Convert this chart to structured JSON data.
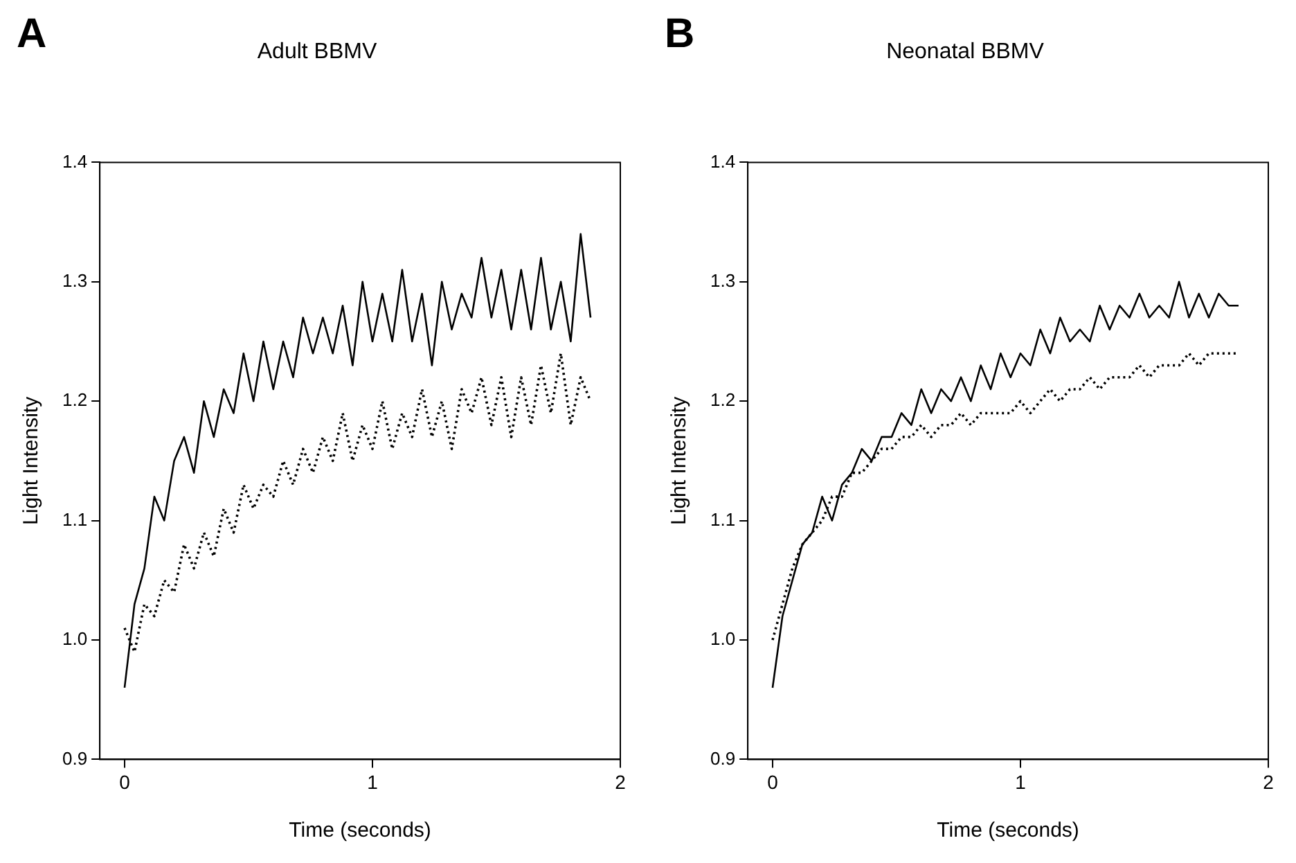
{
  "chart_data": [
    {
      "type": "line",
      "title": "Adult BBMV",
      "xlabel": "Time (seconds)",
      "ylabel": "Light Intensity",
      "annotations": [
        "A"
      ],
      "grid": false,
      "legend": false,
      "marker": "none",
      "xlim": [
        -0.1,
        2
      ],
      "xticks": [
        0,
        1,
        2
      ],
      "ylim": [
        0.9,
        1.4
      ],
      "yticks": [
        {
          "value": 0.9,
          "label": "0.9"
        },
        {
          "value": 1.0,
          "label": "1.0"
        },
        {
          "value": 1.1,
          "label": "1.1"
        },
        {
          "value": 1.2,
          "label": "1.2"
        },
        {
          "value": 1.3,
          "label": "1.3"
        },
        {
          "value": 1.4,
          "label": "1.4"
        }
      ],
      "x": [
        0,
        0.04,
        0.08,
        0.12,
        0.16,
        0.2,
        0.24,
        0.28,
        0.32,
        0.36,
        0.4,
        0.44,
        0.48,
        0.52,
        0.56,
        0.6,
        0.64,
        0.68,
        0.72,
        0.76,
        0.8,
        0.84,
        0.88,
        0.92,
        0.96,
        1.0,
        1.04,
        1.08,
        1.12,
        1.16,
        1.2,
        1.24,
        1.28,
        1.32,
        1.36,
        1.4,
        1.44,
        1.48,
        1.52,
        1.56,
        1.6,
        1.64,
        1.68,
        1.72,
        1.76,
        1.8,
        1.84,
        1.88
      ],
      "series": [
        {
          "color": "#000000",
          "line_style": "solid",
          "values": [
            0.96,
            1.03,
            1.06,
            1.12,
            1.1,
            1.15,
            1.17,
            1.14,
            1.2,
            1.17,
            1.21,
            1.19,
            1.24,
            1.2,
            1.25,
            1.21,
            1.25,
            1.22,
            1.27,
            1.24,
            1.27,
            1.24,
            1.28,
            1.23,
            1.3,
            1.25,
            1.29,
            1.25,
            1.31,
            1.25,
            1.29,
            1.23,
            1.3,
            1.26,
            1.29,
            1.27,
            1.32,
            1.27,
            1.31,
            1.26,
            1.31,
            1.26,
            1.32,
            1.26,
            1.3,
            1.25,
            1.34,
            1.27
          ]
        },
        {
          "color": "#000000",
          "line_style": "dotted",
          "values": [
            1.01,
            0.99,
            1.03,
            1.02,
            1.05,
            1.04,
            1.08,
            1.06,
            1.09,
            1.07,
            1.11,
            1.09,
            1.13,
            1.11,
            1.13,
            1.12,
            1.15,
            1.13,
            1.16,
            1.14,
            1.17,
            1.15,
            1.19,
            1.15,
            1.18,
            1.16,
            1.2,
            1.16,
            1.19,
            1.17,
            1.21,
            1.17,
            1.2,
            1.16,
            1.21,
            1.19,
            1.22,
            1.18,
            1.22,
            1.17,
            1.22,
            1.18,
            1.23,
            1.19,
            1.24,
            1.18,
            1.22,
            1.2
          ]
        }
      ]
    },
    {
      "type": "line",
      "title": "Neonatal BBMV",
      "xlabel": "Time (seconds)",
      "ylabel": "Light Intensity",
      "annotations": [
        "B"
      ],
      "grid": false,
      "legend": false,
      "marker": "none",
      "xlim": [
        -0.1,
        2
      ],
      "xticks": [
        0,
        1,
        2
      ],
      "ylim": [
        0.9,
        1.4
      ],
      "yticks": [
        {
          "value": 0.9,
          "label": "0.9"
        },
        {
          "value": 1.0,
          "label": "1.0"
        },
        {
          "value": 1.1,
          "label": "1.1"
        },
        {
          "value": 1.2,
          "label": "1.2"
        },
        {
          "value": 1.3,
          "label": "1.3"
        },
        {
          "value": 1.4,
          "label": "1.4"
        }
      ],
      "x": [
        0,
        0.04,
        0.08,
        0.12,
        0.16,
        0.2,
        0.24,
        0.28,
        0.32,
        0.36,
        0.4,
        0.44,
        0.48,
        0.52,
        0.56,
        0.6,
        0.64,
        0.68,
        0.72,
        0.76,
        0.8,
        0.84,
        0.88,
        0.92,
        0.96,
        1.0,
        1.04,
        1.08,
        1.12,
        1.16,
        1.2,
        1.24,
        1.28,
        1.32,
        1.36,
        1.4,
        1.44,
        1.48,
        1.52,
        1.56,
        1.6,
        1.64,
        1.68,
        1.72,
        1.76,
        1.8,
        1.84,
        1.88
      ],
      "series": [
        {
          "color": "#000000",
          "line_style": "solid",
          "values": [
            0.96,
            1.02,
            1.05,
            1.08,
            1.09,
            1.12,
            1.1,
            1.13,
            1.14,
            1.16,
            1.15,
            1.17,
            1.17,
            1.19,
            1.18,
            1.21,
            1.19,
            1.21,
            1.2,
            1.22,
            1.2,
            1.23,
            1.21,
            1.24,
            1.22,
            1.24,
            1.23,
            1.26,
            1.24,
            1.27,
            1.25,
            1.26,
            1.25,
            1.28,
            1.26,
            1.28,
            1.27,
            1.29,
            1.27,
            1.28,
            1.27,
            1.3,
            1.27,
            1.29,
            1.27,
            1.29,
            1.28,
            1.28
          ]
        },
        {
          "color": "#000000",
          "line_style": "dotted",
          "values": [
            1.0,
            1.03,
            1.06,
            1.08,
            1.09,
            1.1,
            1.12,
            1.12,
            1.14,
            1.14,
            1.15,
            1.16,
            1.16,
            1.17,
            1.17,
            1.18,
            1.17,
            1.18,
            1.18,
            1.19,
            1.18,
            1.19,
            1.19,
            1.19,
            1.19,
            1.2,
            1.19,
            1.2,
            1.21,
            1.2,
            1.21,
            1.21,
            1.22,
            1.21,
            1.22,
            1.22,
            1.22,
            1.23,
            1.22,
            1.23,
            1.23,
            1.23,
            1.24,
            1.23,
            1.24,
            1.24,
            1.24,
            1.24
          ]
        }
      ]
    }
  ]
}
